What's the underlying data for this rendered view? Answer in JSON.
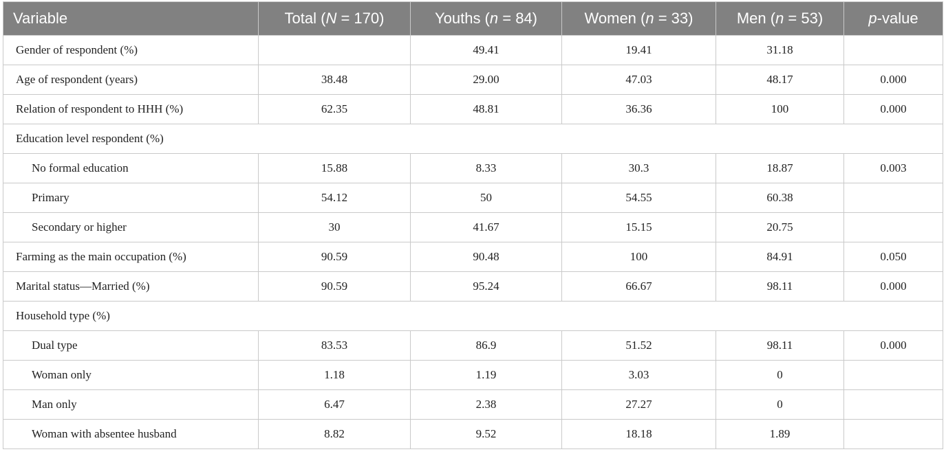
{
  "table": {
    "header": [
      [
        "Variable"
      ],
      [
        "Total (",
        "N",
        " = 170)"
      ],
      [
        "Youths (",
        "n",
        " = 84)"
      ],
      [
        "Women (",
        "n",
        " = 33)"
      ],
      [
        "Men (",
        "n",
        " = 53)"
      ],
      [
        "",
        "p",
        "-value"
      ]
    ],
    "rows": [
      {
        "cells": [
          "Gender of respondent (%)",
          null,
          "49.41",
          "19.41",
          "31.18",
          null
        ]
      },
      {
        "cells": [
          "Age of respondent (years)",
          "38.48",
          "29.00",
          "47.03",
          "48.17",
          "0.000"
        ]
      },
      {
        "cells": [
          "Relation of respondent to HHH (%)",
          "62.35",
          "48.81",
          "36.36",
          "100",
          "0.000"
        ]
      },
      {
        "group": "Education level respondent (%)",
        "rows": [
          [
            "No formal education",
            "15.88",
            "8.33",
            "30.3",
            "18.87",
            "0.003"
          ],
          [
            "Primary",
            "54.12",
            "50",
            "54.55",
            "60.38",
            null
          ],
          [
            "Secondary or higher",
            "30",
            "41.67",
            "15.15",
            "20.75",
            null
          ]
        ]
      },
      {
        "cells": [
          "Farming as the main occupation (%)",
          "90.59",
          "90.48",
          "100",
          "84.91",
          "0.050"
        ]
      },
      {
        "cells": [
          "Marital status—Married (%)",
          "90.59",
          "95.24",
          "66.67",
          "98.11",
          "0.000"
        ]
      },
      {
        "group": "Household type (%)",
        "rows": [
          [
            "Dual type",
            "83.53",
            "86.9",
            "51.52",
            "98.11",
            "0.000"
          ],
          [
            "Woman only",
            "1.18",
            "1.19",
            "3.03",
            "0",
            null
          ],
          [
            "Man only",
            "6.47",
            "2.38",
            "27.27",
            "0",
            null
          ],
          [
            "Woman with absentee husband",
            "8.82",
            "9.52",
            "18.18",
            "1.89",
            null
          ]
        ]
      }
    ]
  }
}
